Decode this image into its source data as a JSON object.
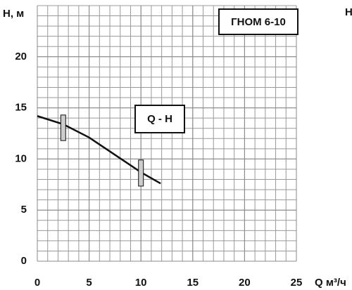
{
  "chart_data": {
    "type": "line",
    "title": "ГНОМ 6-10",
    "curve_label": "Q - H",
    "y_label": "Н, м",
    "x_label": "Q м³/ч",
    "side_text": "Н",
    "x": [
      0,
      2.5,
      5,
      7.5,
      10,
      11.9
    ],
    "series": [
      {
        "name": "Q - H",
        "color": "#111111",
        "values": [
          14.2,
          13.4,
          12.1,
          10.4,
          8.7,
          7.6
        ]
      }
    ],
    "markers": [
      {
        "x": 2.5,
        "low": 11.8,
        "high": 14.3
      },
      {
        "x": 10,
        "low": 7.35,
        "high": 9.9
      }
    ],
    "xlim": [
      0,
      25
    ],
    "ylim": [
      0,
      25
    ],
    "xticks": [
      0,
      5,
      10,
      15,
      20,
      25
    ],
    "yticks": [
      0,
      5,
      10,
      15,
      20
    ],
    "grid": true,
    "minor_step": 1
  }
}
